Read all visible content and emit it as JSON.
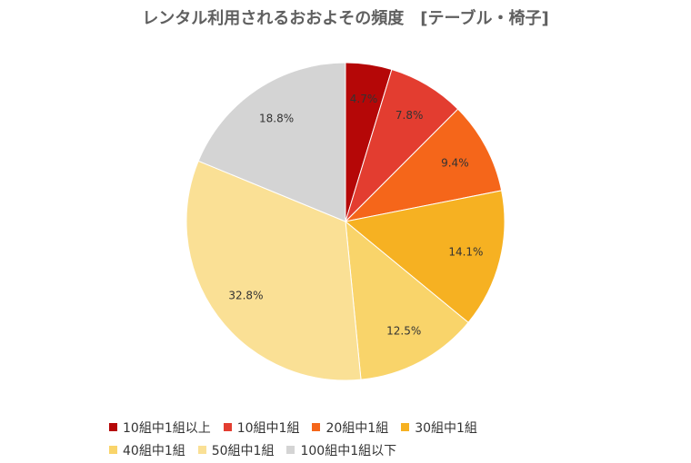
{
  "chart_data": {
    "type": "pie",
    "title": "レンタル利用されるおおよその頻度　[テーブル・椅子]",
    "categories": [
      "10組中1組以上",
      "10組中1組",
      "20組中1組",
      "30組中1組",
      "40組中1組",
      "50組中1組",
      "100組中1組以下"
    ],
    "values": [
      4.7,
      7.8,
      9.4,
      14.1,
      12.5,
      32.8,
      18.8
    ],
    "labels": [
      "4.7%",
      "7.8%",
      "9.4%",
      "14.1%",
      "12.5%",
      "32.8%",
      "18.8%"
    ],
    "colors": [
      "#b50707",
      "#e33d30",
      "#f5661a",
      "#f6b122",
      "#f9d46a",
      "#fae095",
      "#d4d4d4"
    ],
    "legend_position": "bottom"
  }
}
